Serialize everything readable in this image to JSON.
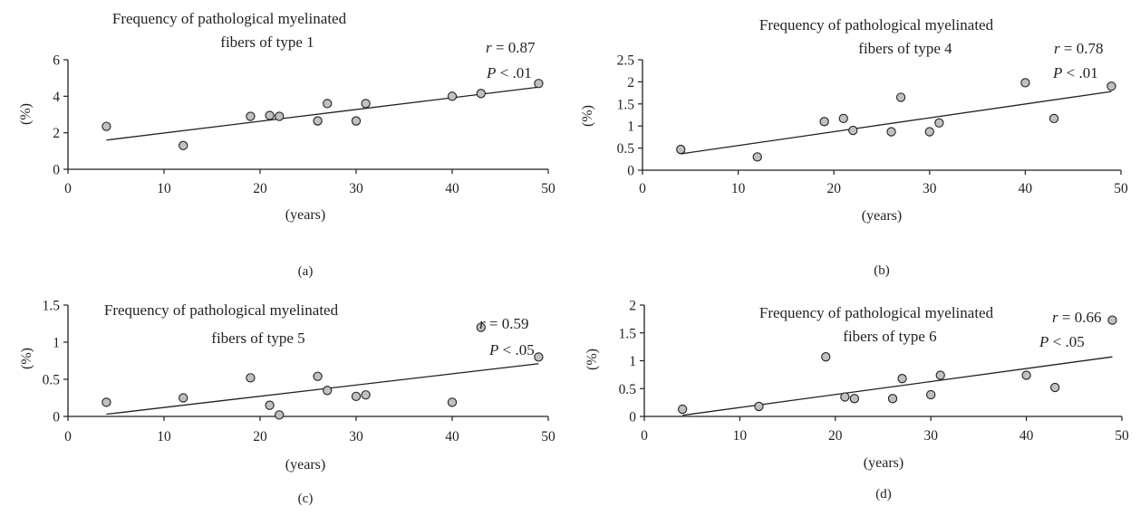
{
  "chart_data": [
    {
      "type": "scatter",
      "panel_label": "(a)",
      "title_lines": [
        "Frequency of pathological myelinated",
        "fibers of type 1"
      ],
      "xlabel": "(years)",
      "ylabel": "(%)",
      "xlim": [
        0,
        50
      ],
      "ylim": [
        0,
        6
      ],
      "xticks": [
        "0",
        "10",
        "20",
        "30",
        "40",
        "50"
      ],
      "yticks": [
        "0",
        "2",
        "4",
        "6"
      ],
      "stats": {
        "r": "0.87",
        "p": ".01",
        "p_op": "<"
      },
      "points": [
        [
          4,
          2.35
        ],
        [
          12,
          1.3
        ],
        [
          19,
          2.9
        ],
        [
          21,
          2.95
        ],
        [
          22,
          2.9
        ],
        [
          26,
          2.65
        ],
        [
          27,
          3.6
        ],
        [
          30,
          2.65
        ],
        [
          31,
          3.6
        ],
        [
          40,
          4.0
        ],
        [
          43,
          4.15
        ],
        [
          49,
          4.7
        ]
      ],
      "trendline": [
        [
          4,
          1.6
        ],
        [
          49,
          4.5
        ]
      ]
    },
    {
      "type": "scatter",
      "panel_label": "(b)",
      "title_lines": [
        "Frequency of pathological myelinated",
        "fibers of type 4"
      ],
      "xlabel": "(years)",
      "ylabel": "(%)",
      "xlim": [
        0,
        50
      ],
      "ylim": [
        0,
        2.5
      ],
      "xticks": [
        "0",
        "10",
        "20",
        "30",
        "40",
        "50"
      ],
      "yticks": [
        "0",
        "0.5",
        "1",
        "1.5",
        "2",
        "2.5"
      ],
      "stats": {
        "r": "0.78",
        "p": ".01",
        "p_op": "<"
      },
      "points": [
        [
          4,
          0.47
        ],
        [
          12,
          0.3
        ],
        [
          19,
          1.1
        ],
        [
          21,
          1.17
        ],
        [
          22,
          0.9
        ],
        [
          26,
          0.87
        ],
        [
          27,
          1.65
        ],
        [
          30,
          0.87
        ],
        [
          31,
          1.07
        ],
        [
          40,
          1.98
        ],
        [
          43,
          1.17
        ],
        [
          49,
          1.9
        ]
      ],
      "trendline": [
        [
          4,
          0.37
        ],
        [
          49,
          1.78
        ]
      ]
    },
    {
      "type": "scatter",
      "panel_label": "(c)",
      "title_lines": [
        "Frequency of pathological myelinated",
        "fibers of type 5"
      ],
      "xlabel": "(years)",
      "ylabel": "(%)",
      "xlim": [
        0,
        50
      ],
      "ylim": [
        0,
        1.5
      ],
      "xticks": [
        "0",
        "10",
        "20",
        "30",
        "40",
        "50"
      ],
      "yticks": [
        "0",
        "0.5",
        "1",
        "1.5"
      ],
      "stats": {
        "r": "0.59",
        "p": ".05",
        "p_op": "<"
      },
      "points": [
        [
          4,
          0.19
        ],
        [
          12,
          0.25
        ],
        [
          19,
          0.52
        ],
        [
          21,
          0.15
        ],
        [
          22,
          0.02
        ],
        [
          26,
          0.54
        ],
        [
          27,
          0.35
        ],
        [
          30,
          0.27
        ],
        [
          31,
          0.29
        ],
        [
          40,
          0.19
        ],
        [
          43,
          1.2
        ],
        [
          49,
          0.8
        ]
      ],
      "trendline": [
        [
          4,
          0.03
        ],
        [
          49,
          0.71
        ]
      ]
    },
    {
      "type": "scatter",
      "panel_label": "(d)",
      "title_lines": [
        "Frequency of pathological myelinated",
        "fibers of type 6"
      ],
      "xlabel": "(years)",
      "ylabel": "(%)",
      "xlim": [
        0,
        50
      ],
      "ylim": [
        0,
        2
      ],
      "xticks": [
        "0",
        "10",
        "20",
        "30",
        "40",
        "50"
      ],
      "yticks": [
        "0",
        "0.5",
        "1",
        "1.5",
        "2"
      ],
      "stats": {
        "r": "0.66",
        "p": ".05",
        "p_op": "<"
      },
      "points": [
        [
          4,
          0.13
        ],
        [
          12,
          0.18
        ],
        [
          19,
          1.07
        ],
        [
          21,
          0.35
        ],
        [
          22,
          0.32
        ],
        [
          26,
          0.32
        ],
        [
          27,
          0.68
        ],
        [
          30,
          0.39
        ],
        [
          31,
          0.74
        ],
        [
          40,
          0.74
        ],
        [
          43,
          0.52
        ],
        [
          49,
          1.73
        ]
      ],
      "trendline": [
        [
          4,
          0.02
        ],
        [
          49,
          1.07
        ]
      ]
    }
  ],
  "style": {
    "ink": "#231f20",
    "marker_fill": "#c0c0c0",
    "marker_stroke": "#231f20"
  }
}
